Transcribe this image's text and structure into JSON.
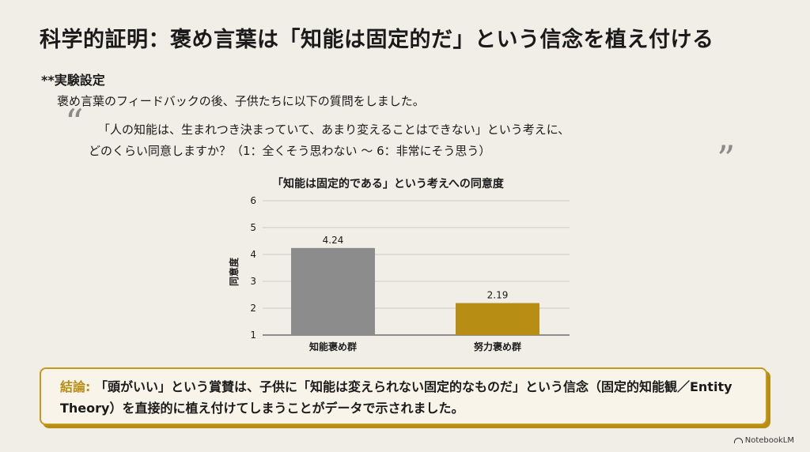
{
  "slide": {
    "title": "科学的証明：褒め言葉は「知能は固定的だ」という信念を植え付ける",
    "setup_heading": "**実験設定",
    "setup_text": "褒め言葉のフィードバックの後、子供たちに以下の質問をしました。",
    "quote_open": "“",
    "quote_close": "”",
    "quote_line1": "「人の知能は、生まれつき決まっていて、あまり変えることはできない」という考えに、",
    "quote_line2": "どのくらい同意しますか？（1：全くそう思わない 〜 6：非常にそう思う）",
    "conclusion_label": "結論:",
    "conclusion_text": "「頭がいい」という賞賛は、子供に「知能は変えられない固定的なものだ」という信念（固定的知能観／Entity Theory）を直接的に植え付けてしまうことがデータで示されました。",
    "brand": "NotebookLM"
  },
  "chart_data": {
    "type": "bar",
    "title": "「知能は固定的である」という考えへの同意度",
    "categories": [
      "知能褒め群",
      "努力褒め群"
    ],
    "values": [
      4.24,
      2.19
    ],
    "value_labels": [
      "4.24",
      "2.19"
    ],
    "ylabel": "同意度",
    "ylim": [
      1,
      6
    ],
    "yticks": [
      "1",
      "2",
      "3",
      "4",
      "5",
      "6"
    ],
    "colors": [
      "#8c8c8c",
      "#b88d14"
    ],
    "grid": true
  }
}
